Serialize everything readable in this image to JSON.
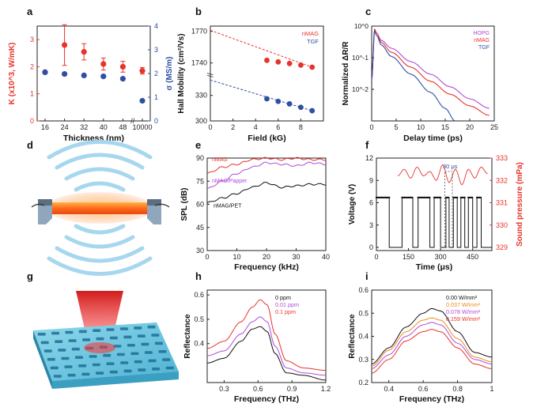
{
  "panels": {
    "a": {
      "label": "a"
    },
    "b": {
      "label": "b"
    },
    "c": {
      "label": "c"
    },
    "d": {
      "label": "d"
    },
    "e": {
      "label": "e"
    },
    "f": {
      "label": "f"
    },
    "g": {
      "label": "g"
    },
    "h": {
      "label": "h"
    },
    "i": {
      "label": "i"
    }
  },
  "colors": {
    "red": "#e8332a",
    "blue": "#2e4fa3",
    "purple": "#b04ad8",
    "orange": "#f08a1c",
    "black": "#111111",
    "gray": "#555555"
  },
  "chart_data": [
    {
      "id": "a",
      "type": "scatter",
      "xlabel": "Thickness (nm)",
      "ylabel_left": "K (x10^3, W/mK)",
      "ylabel_right": "σ (MS/m)",
      "categories": [
        "16",
        "24",
        "32",
        "40",
        "48",
        "10000"
      ],
      "ylim_left": [
        0,
        3.5
      ],
      "yticks_left": [
        0,
        1,
        2,
        3
      ],
      "ylim_right": [
        0,
        4
      ],
      "yticks_right": [
        0,
        1,
        2,
        3,
        4
      ],
      "series": [
        {
          "values": [
            1.8,
            2.8,
            2.55,
            2.1,
            2.0,
            1.85
          ],
          "errors": [
            0,
            0.75,
            0.3,
            0.22,
            0.2,
            0.12
          ],
          "color": "#e8332a",
          "axis": "left"
        },
        {
          "values": [
            2.05,
            1.98,
            1.92,
            1.88,
            1.78,
            0.85
          ],
          "errors": [
            0,
            0,
            0,
            0,
            0,
            0
          ],
          "color": "#2e4fa3",
          "axis": "right"
        }
      ],
      "broken_axis": true
    },
    {
      "id": "b",
      "type": "scatter",
      "xlabel": "Field (kG)",
      "ylabel": "Hall Mobility (cm²/Vs)",
      "xlim": [
        0,
        10
      ],
      "xticks": [
        0,
        2,
        4,
        6,
        8
      ],
      "yticks_top": [
        1740,
        1770
      ],
      "yticks_bottom": [
        300,
        330
      ],
      "series": [
        {
          "name": "nMAG",
          "x": [
            5,
            6,
            7,
            8,
            9
          ],
          "y": [
            1742.5,
            1741,
            1739.5,
            1738,
            1736
          ],
          "color": "#e8332a",
          "fit": [
            [
              0,
              1771
            ],
            [
              9,
              1736
            ]
          ]
        },
        {
          "name": "TGF",
          "x": [
            5,
            6,
            7,
            8,
            9
          ],
          "y": [
            326,
            323,
            320,
            316,
            312
          ],
          "color": "#2e4fa3",
          "fit": [
            [
              0,
              348
            ],
            [
              9,
              312
            ]
          ]
        }
      ],
      "broken_axis": true
    },
    {
      "id": "c",
      "type": "line",
      "xlabel": "Delay time (ps)",
      "ylabel": "Normalized ΔR/R",
      "xlim": [
        0,
        25
      ],
      "xticks": [
        0,
        5,
        10,
        15,
        20,
        25
      ],
      "ylim": [
        0.001,
        1
      ],
      "yscale": "log",
      "yticks": [
        "10^-2",
        "10^-1",
        "10^0"
      ],
      "series": [
        {
          "name": "HOPG",
          "color": "#b04ad8",
          "x": [
            0,
            0.6,
            1,
            2,
            4,
            8,
            12,
            16,
            20,
            24
          ],
          "y": [
            0.02,
            0.75,
            0.6,
            0.35,
            0.2,
            0.075,
            0.03,
            0.012,
            0.005,
            0.0025
          ]
        },
        {
          "name": "nMAG",
          "color": "#e8332a",
          "x": [
            0,
            0.6,
            1,
            2,
            4,
            8,
            12,
            16,
            20,
            24
          ],
          "y": [
            0.02,
            0.8,
            0.6,
            0.3,
            0.15,
            0.05,
            0.018,
            0.007,
            0.003,
            0.0015
          ]
        },
        {
          "name": "TGF",
          "color": "#2e4fa3",
          "x": [
            0,
            0.6,
            1,
            2,
            4,
            8,
            12,
            15,
            17
          ],
          "y": [
            0.02,
            0.7,
            0.5,
            0.25,
            0.11,
            0.03,
            0.008,
            0.0025,
            0.001
          ]
        }
      ]
    },
    {
      "id": "e",
      "type": "line",
      "xlabel": "Frequency (kHz)",
      "ylabel": "SPL (dB)",
      "xlim": [
        0,
        40
      ],
      "xticks": [
        0,
        10,
        20,
        30,
        40
      ],
      "ylim": [
        30,
        90
      ],
      "yticks": [
        30,
        45,
        60,
        75,
        90
      ],
      "series": [
        {
          "name": "nMAG",
          "color": "#e8332a",
          "x": [
            0,
            5,
            10,
            15,
            20,
            25,
            30,
            35,
            40
          ],
          "y": [
            80,
            84,
            86,
            89,
            90,
            89,
            90,
            89,
            89
          ]
        },
        {
          "name": "nMAG/Papper",
          "color": "#b04ad8",
          "x": [
            0,
            5,
            10,
            15,
            20,
            25,
            30,
            35,
            40
          ],
          "y": [
            70,
            75,
            80,
            84,
            87,
            86,
            85,
            87,
            86
          ]
        },
        {
          "name": "nMAG/PET",
          "color": "#111111",
          "x": [
            0,
            5,
            10,
            15,
            20,
            25,
            30,
            35,
            40
          ],
          "y": [
            61,
            64,
            67,
            71,
            74,
            71,
            72,
            73,
            73
          ]
        }
      ]
    },
    {
      "id": "f",
      "type": "line",
      "xlabel": "Time (μs)",
      "ylabel_left": "Voltage (V)",
      "ylabel_right": "Sound pressure (mPa)",
      "xlim": [
        0,
        540
      ],
      "xticks": [
        0,
        150,
        300,
        450
      ],
      "ylim_left": [
        0,
        12
      ],
      "yticks_left": [
        0,
        3,
        6,
        9,
        12
      ],
      "ylim_right": [
        329,
        333
      ],
      "yticks_right": [
        329,
        330,
        331,
        332,
        333
      ],
      "annotation": "30 μs",
      "voltage_segments": [
        [
          0,
          60
        ],
        [
          120,
          170
        ],
        [
          195,
          250
        ],
        [
          270,
          300
        ],
        [
          325,
          340
        ],
        [
          360,
          378
        ],
        [
          395,
          413
        ],
        [
          430,
          450
        ],
        [
          470,
          490
        ]
      ],
      "voltage_high": 6.7,
      "sound_pressure": {
        "x": [
          100,
          130,
          160,
          190,
          220,
          250,
          280,
          310,
          340,
          370,
          400,
          430,
          460,
          490,
          520
        ],
        "y": [
          332.2,
          332.5,
          332.1,
          332.6,
          332.2,
          332.4,
          332.0,
          332.7,
          331.9,
          332.5,
          331.8,
          332.5,
          332.1,
          332.6,
          332.3
        ]
      }
    },
    {
      "id": "h",
      "type": "line",
      "xlabel": "Frequency (THz)",
      "ylabel": "Reflectance",
      "xlim": [
        0.15,
        1.2
      ],
      "xticks": [
        0.3,
        0.6,
        0.9,
        1.2
      ],
      "ylim": [
        0.24,
        0.62
      ],
      "yticks": [
        0.4,
        0.5,
        0.6
      ],
      "series": [
        {
          "name": "0 ppm",
          "color": "#111111",
          "x": [
            0.15,
            0.3,
            0.45,
            0.55,
            0.62,
            0.68,
            0.75,
            0.85,
            1.0,
            1.2
          ],
          "y": [
            0.32,
            0.34,
            0.41,
            0.46,
            0.47,
            0.45,
            0.36,
            0.28,
            0.27,
            0.25
          ]
        },
        {
          "name": "0.01 ppm",
          "color": "#b04ad8",
          "x": [
            0.15,
            0.3,
            0.45,
            0.55,
            0.62,
            0.68,
            0.75,
            0.85,
            1.0,
            1.2
          ],
          "y": [
            0.35,
            0.37,
            0.44,
            0.49,
            0.51,
            0.49,
            0.39,
            0.3,
            0.28,
            0.27
          ]
        },
        {
          "name": "0.1 ppm",
          "color": "#e8332a",
          "x": [
            0.15,
            0.3,
            0.45,
            0.55,
            0.62,
            0.68,
            0.75,
            0.85,
            1.0,
            1.2
          ],
          "y": [
            0.38,
            0.41,
            0.49,
            0.55,
            0.58,
            0.56,
            0.44,
            0.33,
            0.3,
            0.29
          ]
        }
      ]
    },
    {
      "id": "i",
      "type": "line",
      "xlabel": "Frequency (THz)",
      "ylabel": "Reflectance",
      "xlim": [
        0.3,
        1.0
      ],
      "xticks": [
        0.4,
        0.6,
        0.8,
        1.0
      ],
      "ylim": [
        0.2,
        0.6
      ],
      "yticks": [
        0.2,
        0.3,
        0.4,
        0.5,
        0.6
      ],
      "series": [
        {
          "name": "0.00 W/mm²",
          "color": "#111111",
          "x": [
            0.3,
            0.4,
            0.5,
            0.6,
            0.65,
            0.7,
            0.8,
            0.9,
            1.0
          ],
          "y": [
            0.28,
            0.35,
            0.44,
            0.5,
            0.52,
            0.51,
            0.42,
            0.33,
            0.31
          ]
        },
        {
          "name": "0.037 W/mm²",
          "color": "#f08a1c",
          "x": [
            0.3,
            0.4,
            0.5,
            0.6,
            0.65,
            0.7,
            0.8,
            0.9,
            1.0
          ],
          "y": [
            0.27,
            0.34,
            0.42,
            0.47,
            0.48,
            0.47,
            0.39,
            0.31,
            0.29
          ]
        },
        {
          "name": "0.078 W/mm²",
          "color": "#b04ad8",
          "x": [
            0.3,
            0.4,
            0.5,
            0.6,
            0.65,
            0.7,
            0.8,
            0.9,
            1.0
          ],
          "y": [
            0.26,
            0.32,
            0.4,
            0.45,
            0.46,
            0.45,
            0.37,
            0.3,
            0.28
          ]
        },
        {
          "name": "0.159 W/mm²",
          "color": "#e8332a",
          "x": [
            0.3,
            0.4,
            0.5,
            0.6,
            0.65,
            0.7,
            0.8,
            0.9,
            1.0
          ],
          "y": [
            0.24,
            0.3,
            0.38,
            0.42,
            0.43,
            0.42,
            0.35,
            0.28,
            0.26
          ]
        }
      ]
    }
  ]
}
